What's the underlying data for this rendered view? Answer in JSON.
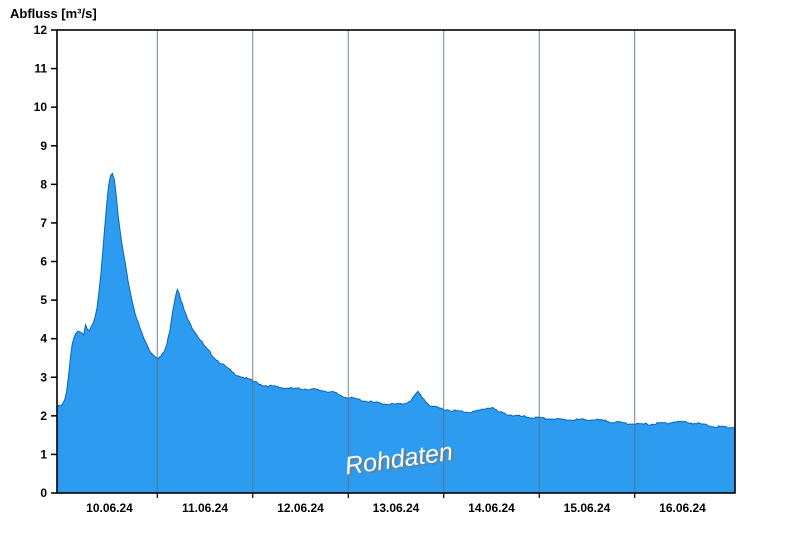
{
  "header": {
    "title": "Abfluss [m³/s]"
  },
  "watermark": {
    "text": "Rohdaten"
  },
  "colors": {
    "background": "#ffffff",
    "area_fill": "#2d9bf0",
    "area_edge": "#0a66b8",
    "gridline": "#5f7080",
    "frame": "#000000",
    "watermark_fill": "#ffffff",
    "watermark_shadow": "#7a7a7a"
  },
  "chart_data": {
    "type": "area",
    "title": "Abfluss [m³/s]",
    "ylabel": "Abfluss [m³/s]",
    "xlabel": "",
    "ylim": [
      0,
      12
    ],
    "y_ticks": [
      0,
      1,
      2,
      3,
      4,
      5,
      6,
      7,
      8,
      9,
      10,
      11,
      12
    ],
    "x_tick_labels": [
      "10.06.24",
      "11.06.24",
      "12.06.24",
      "13.06.24",
      "14.06.24",
      "15.06.24",
      "16.06.24"
    ],
    "x_tick_positions_days": [
      0.55,
      1.55,
      2.55,
      3.55,
      4.55,
      5.55,
      6.55
    ],
    "gridline_positions_days": [
      1.05,
      2.05,
      3.05,
      4.05,
      5.05,
      6.05
    ],
    "x_domain_days": [
      0,
      7.1
    ],
    "grid": "vertical-day-lines",
    "legend": "none",
    "annotations": [
      "Rohdaten"
    ],
    "series": [
      {
        "name": "Rohdaten",
        "unit": "m³/s",
        "points": [
          [
            0.0,
            2.2
          ],
          [
            0.02,
            2.25
          ],
          [
            0.04,
            2.25
          ],
          [
            0.06,
            2.3
          ],
          [
            0.08,
            2.4
          ],
          [
            0.1,
            2.6
          ],
          [
            0.12,
            3.0
          ],
          [
            0.14,
            3.5
          ],
          [
            0.16,
            3.9
          ],
          [
            0.18,
            4.05
          ],
          [
            0.2,
            4.15
          ],
          [
            0.22,
            4.2
          ],
          [
            0.24,
            4.2
          ],
          [
            0.26,
            4.15
          ],
          [
            0.28,
            4.1
          ],
          [
            0.3,
            4.35
          ],
          [
            0.32,
            4.2
          ],
          [
            0.34,
            4.2
          ],
          [
            0.36,
            4.3
          ],
          [
            0.38,
            4.4
          ],
          [
            0.4,
            4.55
          ],
          [
            0.42,
            4.8
          ],
          [
            0.44,
            5.2
          ],
          [
            0.46,
            5.7
          ],
          [
            0.48,
            6.3
          ],
          [
            0.5,
            6.9
          ],
          [
            0.52,
            7.5
          ],
          [
            0.54,
            8.0
          ],
          [
            0.56,
            8.25
          ],
          [
            0.58,
            8.3
          ],
          [
            0.6,
            8.1
          ],
          [
            0.62,
            7.7
          ],
          [
            0.64,
            7.2
          ],
          [
            0.66,
            6.8
          ],
          [
            0.68,
            6.45
          ],
          [
            0.7,
            6.15
          ],
          [
            0.73,
            5.7
          ],
          [
            0.76,
            5.3
          ],
          [
            0.79,
            4.95
          ],
          [
            0.82,
            4.65
          ],
          [
            0.85,
            4.4
          ],
          [
            0.88,
            4.2
          ],
          [
            0.91,
            4.0
          ],
          [
            0.94,
            3.85
          ],
          [
            0.97,
            3.7
          ],
          [
            1.0,
            3.6
          ],
          [
            1.03,
            3.55
          ],
          [
            1.06,
            3.5
          ],
          [
            1.09,
            3.55
          ],
          [
            1.12,
            3.65
          ],
          [
            1.15,
            3.85
          ],
          [
            1.18,
            4.2
          ],
          [
            1.21,
            4.7
          ],
          [
            1.24,
            5.1
          ],
          [
            1.26,
            5.3
          ],
          [
            1.28,
            5.2
          ],
          [
            1.3,
            5.0
          ],
          [
            1.33,
            4.75
          ],
          [
            1.36,
            4.55
          ],
          [
            1.4,
            4.35
          ],
          [
            1.44,
            4.2
          ],
          [
            1.48,
            4.05
          ],
          [
            1.52,
            3.9
          ],
          [
            1.56,
            3.75
          ],
          [
            1.6,
            3.65
          ],
          [
            1.65,
            3.5
          ],
          [
            1.7,
            3.4
          ],
          [
            1.75,
            3.3
          ],
          [
            1.8,
            3.2
          ],
          [
            1.85,
            3.1
          ],
          [
            1.9,
            3.05
          ],
          [
            1.95,
            3.0
          ],
          [
            2.0,
            2.95
          ],
          [
            2.05,
            2.9
          ],
          [
            2.1,
            2.85
          ],
          [
            2.15,
            2.8
          ],
          [
            2.2,
            2.78
          ],
          [
            2.3,
            2.75
          ],
          [
            2.4,
            2.72
          ],
          [
            2.5,
            2.7
          ],
          [
            2.6,
            2.7
          ],
          [
            2.7,
            2.68
          ],
          [
            2.8,
            2.65
          ],
          [
            2.9,
            2.6
          ],
          [
            3.0,
            2.5
          ],
          [
            3.1,
            2.45
          ],
          [
            3.2,
            2.4
          ],
          [
            3.3,
            2.35
          ],
          [
            3.4,
            2.32
          ],
          [
            3.5,
            2.3
          ],
          [
            3.6,
            2.3
          ],
          [
            3.65,
            2.33
          ],
          [
            3.7,
            2.4
          ],
          [
            3.74,
            2.5
          ],
          [
            3.78,
            2.62
          ],
          [
            3.82,
            2.5
          ],
          [
            3.86,
            2.38
          ],
          [
            3.9,
            2.28
          ],
          [
            3.95,
            2.22
          ],
          [
            4.0,
            2.2
          ],
          [
            4.1,
            2.15
          ],
          [
            4.2,
            2.12
          ],
          [
            4.3,
            2.1
          ],
          [
            4.4,
            2.12
          ],
          [
            4.5,
            2.2
          ],
          [
            4.56,
            2.22
          ],
          [
            4.62,
            2.1
          ],
          [
            4.7,
            2.05
          ],
          [
            4.8,
            2.0
          ],
          [
            4.9,
            1.97
          ],
          [
            5.0,
            1.95
          ],
          [
            5.1,
            1.93
          ],
          [
            5.2,
            1.92
          ],
          [
            5.3,
            1.9
          ],
          [
            5.4,
            1.9
          ],
          [
            5.5,
            1.9
          ],
          [
            5.6,
            1.9
          ],
          [
            5.7,
            1.88
          ],
          [
            5.8,
            1.85
          ],
          [
            5.9,
            1.82
          ],
          [
            6.0,
            1.8
          ],
          [
            6.1,
            1.78
          ],
          [
            6.2,
            1.78
          ],
          [
            6.3,
            1.8
          ],
          [
            6.4,
            1.82
          ],
          [
            6.5,
            1.85
          ],
          [
            6.6,
            1.83
          ],
          [
            6.7,
            1.8
          ],
          [
            6.8,
            1.76
          ],
          [
            6.9,
            1.72
          ],
          [
            7.0,
            1.7
          ],
          [
            7.1,
            1.7
          ]
        ]
      }
    ]
  }
}
